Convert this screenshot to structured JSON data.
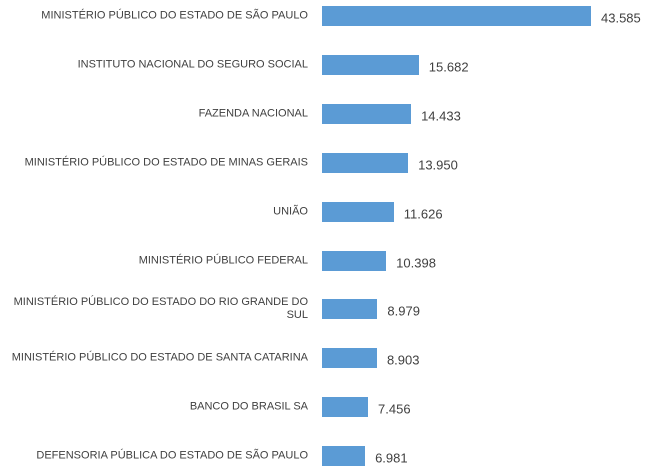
{
  "chart_data": {
    "type": "bar",
    "orientation": "horizontal",
    "color": "#5b9bd5",
    "categories": [
      "MINISTÉRIO PÚBLICO DO ESTADO DE SÃO PAULO",
      "INSTITUTO NACIONAL DO SEGURO SOCIAL",
      "FAZENDA NACIONAL",
      "MINISTÉRIO PÚBLICO DO ESTADO DE MINAS GERAIS",
      "UNIÃO",
      "MINISTÉRIO PÚBLICO FEDERAL",
      "MINISTÉRIO PÚBLICO DO ESTADO DO RIO GRANDE DO SUL",
      "MINISTÉRIO PÚBLICO DO ESTADO DE SANTA CATARINA",
      "BANCO DO BRASIL SA",
      "DEFENSORIA PÚBLICA DO ESTADO DE SÃO PAULO"
    ],
    "values": [
      43585,
      15682,
      14433,
      13950,
      11626,
      10398,
      8979,
      8903,
      7456,
      6981
    ],
    "value_labels": [
      "43.585",
      "15.682",
      "14.433",
      "13.950",
      "11.626",
      "10.398",
      "8.979",
      "8.903",
      "7.456",
      "6.981"
    ]
  }
}
